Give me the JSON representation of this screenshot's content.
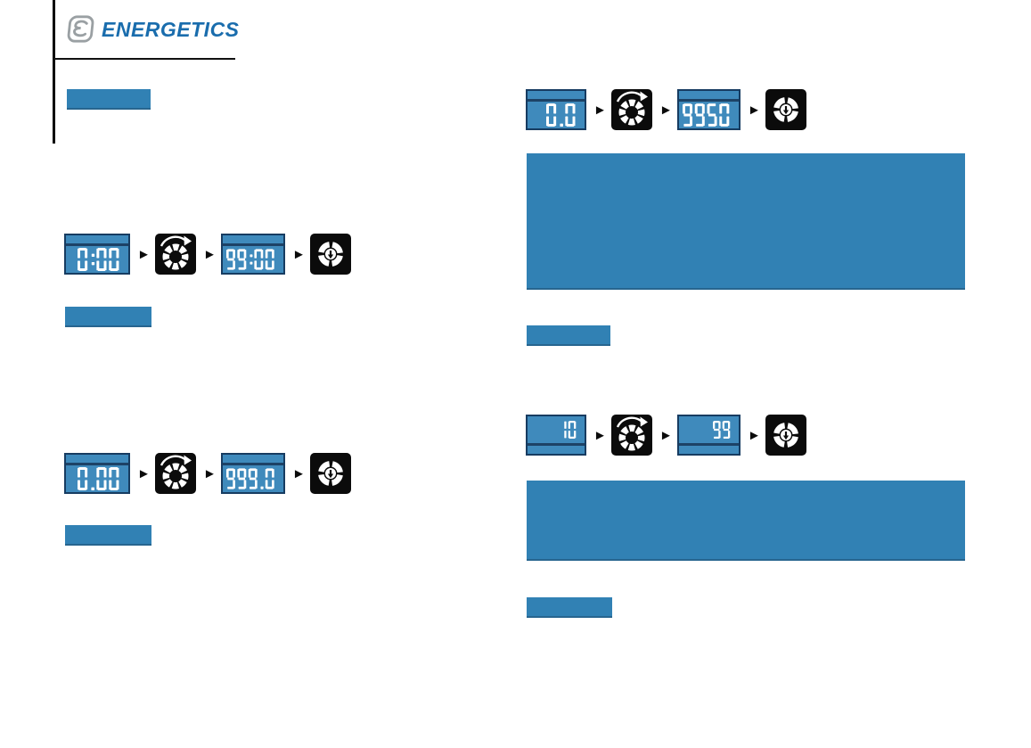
{
  "brand": {
    "name": "ENERGETICS"
  },
  "colors": {
    "accent_blue": "#3181b4",
    "lcd_background": "#3f8abc",
    "lcd_frame": "#173c61",
    "key_black": "#0b0b0b",
    "brand_blue": "#1a6dad",
    "logo_gray": "#9aa0a3",
    "segment_white": "#ffffff"
  },
  "icons": {
    "step_arrow_glyph": "►"
  },
  "sequences": [
    {
      "from": "0:00",
      "to": "99:00"
    },
    {
      "from": "0.00",
      "to": "999.0"
    },
    {
      "from": "0.0",
      "to": "9950"
    },
    {
      "from": "10",
      "to": "99"
    }
  ]
}
